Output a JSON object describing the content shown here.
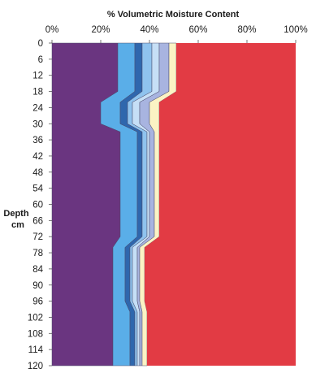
{
  "chart_data": {
    "type": "area",
    "title": "% Volumetric Moisture Content",
    "xlabel": "% Volumetric Moisture Content",
    "ylabel": [
      "Depth",
      "cm"
    ],
    "x_ticks": [
      "0%",
      "20%",
      "40%",
      "60%",
      "80%",
      "100%"
    ],
    "xlim": [
      0,
      100
    ],
    "y_ticks": [
      "0",
      "6",
      "12",
      "18",
      "24",
      "30",
      "36",
      "42",
      "48",
      "54",
      "60",
      "66",
      "72",
      "78",
      "84",
      "90",
      "96",
      "102",
      "108",
      "114",
      "120"
    ],
    "ylim": [
      0,
      120
    ],
    "depth": [
      0,
      18,
      22,
      30,
      33,
      72,
      76,
      96,
      100,
      120
    ],
    "boundaries": [
      {
        "color": "#6a3580",
        "values": [
          27,
          27,
          20,
          20,
          28,
          28,
          25,
          25,
          25,
          25
        ]
      },
      {
        "color": "#5aaee8",
        "values": [
          34,
          34,
          28,
          28,
          35,
          35,
          30,
          30,
          32,
          32
        ]
      },
      {
        "color": "#2f67ad",
        "values": [
          37,
          37,
          31,
          31,
          37,
          37,
          32,
          32,
          34,
          34
        ]
      },
      {
        "color": "#8fc3ee",
        "values": [
          41,
          41,
          33,
          33,
          39,
          39,
          33,
          33,
          35,
          35
        ]
      },
      {
        "color": "#c6dff6",
        "values": [
          44,
          44,
          36,
          36,
          40,
          40,
          35,
          35,
          36,
          36
        ]
      },
      {
        "color": "#a8b4e0",
        "values": [
          48,
          48,
          40,
          40,
          42,
          42,
          36,
          36,
          37,
          37
        ]
      },
      {
        "color": "#fbf3c4",
        "values": [
          51,
          51,
          44,
          44,
          44,
          44,
          38,
          38,
          39,
          39
        ]
      },
      {
        "color": "#e23b44",
        "values": [
          100,
          100,
          100,
          100,
          100,
          100,
          100,
          100,
          100,
          100
        ]
      }
    ]
  }
}
